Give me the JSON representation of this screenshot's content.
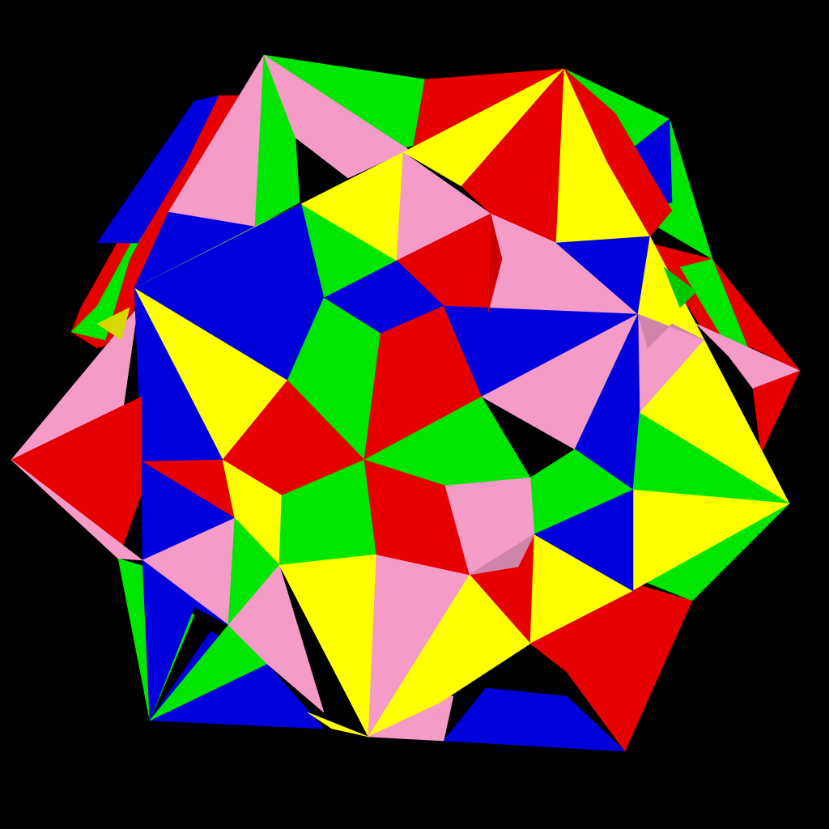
{
  "scene": {
    "subject": "compound-polyhedron",
    "background": "#000000"
  },
  "palette": {
    "red": "#e60000",
    "green": "#00e600",
    "blue": "#0000dd",
    "yellow": "#ffff00",
    "pink": "#f59bc8",
    "dark_red": "#d00000",
    "dark_pink": "#cf85aa",
    "dark_yellow": "#d8d800",
    "dark_green": "#00c800"
  }
}
